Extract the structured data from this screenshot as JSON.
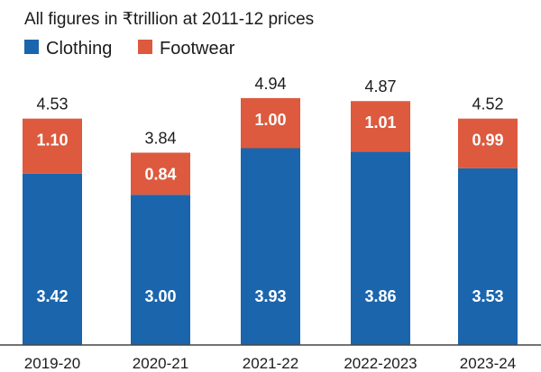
{
  "chart_data": {
    "type": "bar",
    "stacked": true,
    "title": "All figures in ₹trillion at 2011-12 prices",
    "categories": [
      "2019-20",
      "2020-21",
      "2021-22",
      "2022-2023",
      "2023-24"
    ],
    "series": [
      {
        "name": "Clothing",
        "color": "#1b65ad",
        "values": [
          3.42,
          3.0,
          3.93,
          3.86,
          3.53
        ],
        "labels": [
          "3.42",
          "3.00",
          "3.93",
          "3.86",
          "3.53"
        ]
      },
      {
        "name": "Footwear",
        "color": "#dd5a3e",
        "values": [
          1.1,
          0.84,
          1.0,
          1.01,
          0.99
        ],
        "labels": [
          "1.10",
          "0.84",
          "1.00",
          "1.01",
          "0.99"
        ]
      }
    ],
    "totals": [
      "4.53",
      "3.84",
      "4.94",
      "4.87",
      "4.52"
    ],
    "ylim": [
      0,
      5
    ],
    "xlabel": "",
    "ylabel": "",
    "legend": "top-left",
    "grid": false
  }
}
